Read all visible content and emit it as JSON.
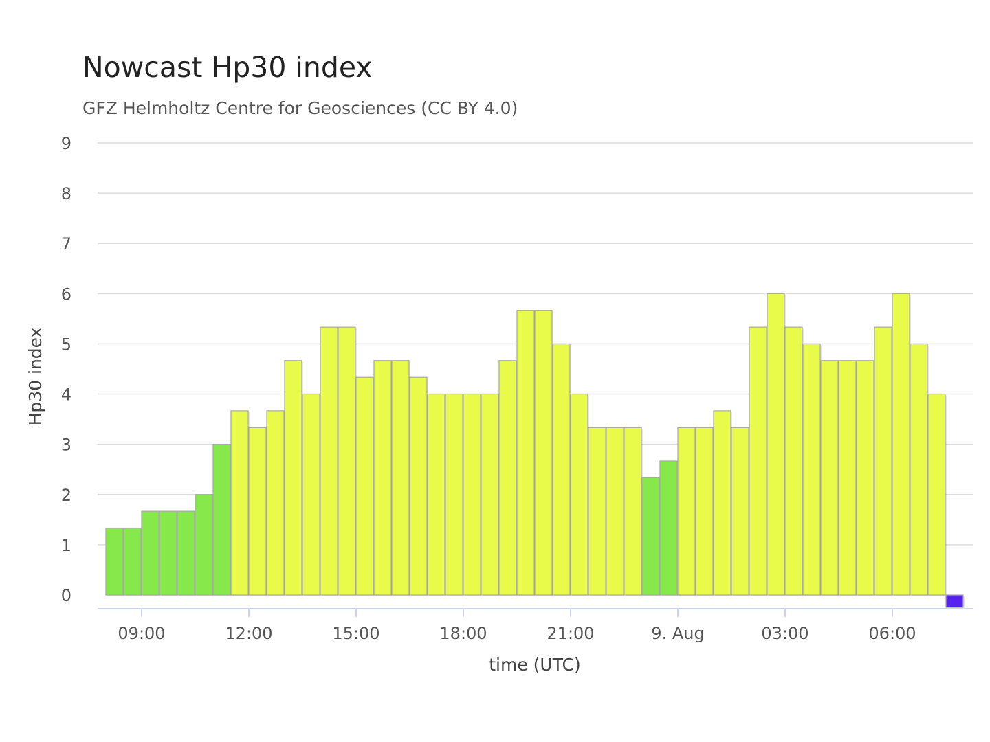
{
  "chart_data": {
    "type": "bar",
    "title": "Nowcast Hp30 index",
    "subtitle": "GFZ Helmholtz Centre for Geosciences (CC BY 4.0)",
    "xlabel": "time (UTC)",
    "ylabel": "Hp30 index",
    "ylim": [
      0,
      9
    ],
    "yticks": [
      0,
      1,
      2,
      3,
      4,
      5,
      6,
      7,
      8,
      9
    ],
    "grid": true,
    "legend": "none",
    "x_start": "08:00",
    "x_end": "08:00 9. Aug",
    "interval_minutes": 30,
    "xticks": [
      {
        "label": "09:00",
        "time": "09:00"
      },
      {
        "label": "12:00",
        "time": "12:00"
      },
      {
        "label": "15:00",
        "time": "15:00"
      },
      {
        "label": "18:00",
        "time": "18:00"
      },
      {
        "label": "21:00",
        "time": "21:00"
      },
      {
        "label": "9. Aug",
        "time": "00:00 9. Aug"
      },
      {
        "label": "03:00",
        "time": "03:00 9. Aug"
      },
      {
        "label": "06:00",
        "time": "06:00 9. Aug"
      }
    ],
    "colors": {
      "quiet": "#86e84a",
      "active": "#e8fa4a",
      "nowcast": "#5522ee",
      "edge": "#a8a8a8"
    },
    "bars": [
      {
        "time": "08:00",
        "value": 1.333,
        "level": "quiet"
      },
      {
        "time": "08:30",
        "value": 1.333,
        "level": "quiet"
      },
      {
        "time": "09:00",
        "value": 1.667,
        "level": "quiet"
      },
      {
        "time": "09:30",
        "value": 1.667,
        "level": "quiet"
      },
      {
        "time": "10:00",
        "value": 1.667,
        "level": "quiet"
      },
      {
        "time": "10:30",
        "value": 2.0,
        "level": "quiet"
      },
      {
        "time": "11:00",
        "value": 3.0,
        "level": "quiet"
      },
      {
        "time": "11:30",
        "value": 3.667,
        "level": "active"
      },
      {
        "time": "12:00",
        "value": 3.333,
        "level": "active"
      },
      {
        "time": "12:30",
        "value": 3.667,
        "level": "active"
      },
      {
        "time": "13:00",
        "value": 4.667,
        "level": "active"
      },
      {
        "time": "13:30",
        "value": 4.0,
        "level": "active"
      },
      {
        "time": "14:00",
        "value": 5.333,
        "level": "active"
      },
      {
        "time": "14:30",
        "value": 5.333,
        "level": "active"
      },
      {
        "time": "15:00",
        "value": 4.333,
        "level": "active"
      },
      {
        "time": "15:30",
        "value": 4.667,
        "level": "active"
      },
      {
        "time": "16:00",
        "value": 4.667,
        "level": "active"
      },
      {
        "time": "16:30",
        "value": 4.333,
        "level": "active"
      },
      {
        "time": "17:00",
        "value": 4.0,
        "level": "active"
      },
      {
        "time": "17:30",
        "value": 4.0,
        "level": "active"
      },
      {
        "time": "18:00",
        "value": 4.0,
        "level": "active"
      },
      {
        "time": "18:30",
        "value": 4.0,
        "level": "active"
      },
      {
        "time": "19:00",
        "value": 4.667,
        "level": "active"
      },
      {
        "time": "19:30",
        "value": 5.667,
        "level": "active"
      },
      {
        "time": "20:00",
        "value": 5.667,
        "level": "active"
      },
      {
        "time": "20:30",
        "value": 5.0,
        "level": "active"
      },
      {
        "time": "21:00",
        "value": 4.0,
        "level": "active"
      },
      {
        "time": "21:30",
        "value": 3.333,
        "level": "active"
      },
      {
        "time": "22:00",
        "value": 3.333,
        "level": "active"
      },
      {
        "time": "22:30",
        "value": 3.333,
        "level": "active"
      },
      {
        "time": "23:00",
        "value": 2.333,
        "level": "quiet"
      },
      {
        "time": "23:30",
        "value": 2.667,
        "level": "quiet"
      },
      {
        "time": "00:00 9. Aug",
        "value": 3.333,
        "level": "active"
      },
      {
        "time": "00:30 9. Aug",
        "value": 3.333,
        "level": "active"
      },
      {
        "time": "01:00 9. Aug",
        "value": 3.667,
        "level": "active"
      },
      {
        "time": "01:30 9. Aug",
        "value": 3.333,
        "level": "active"
      },
      {
        "time": "02:00 9. Aug",
        "value": 5.333,
        "level": "active"
      },
      {
        "time": "02:30 9. Aug",
        "value": 6.0,
        "level": "active"
      },
      {
        "time": "03:00 9. Aug",
        "value": 5.333,
        "level": "active"
      },
      {
        "time": "03:30 9. Aug",
        "value": 5.0,
        "level": "active"
      },
      {
        "time": "04:00 9. Aug",
        "value": 4.667,
        "level": "active"
      },
      {
        "time": "04:30 9. Aug",
        "value": 4.667,
        "level": "active"
      },
      {
        "time": "05:00 9. Aug",
        "value": 4.667,
        "level": "active"
      },
      {
        "time": "05:30 9. Aug",
        "value": 5.333,
        "level": "active"
      },
      {
        "time": "06:00 9. Aug",
        "value": 6.0,
        "level": "active"
      },
      {
        "time": "06:30 9. Aug",
        "value": 5.0,
        "level": "active"
      },
      {
        "time": "07:00 9. Aug",
        "value": 4.0,
        "level": "active"
      },
      {
        "time": "07:30 9. Aug",
        "value": 0.25,
        "level": "nowcast"
      }
    ]
  }
}
